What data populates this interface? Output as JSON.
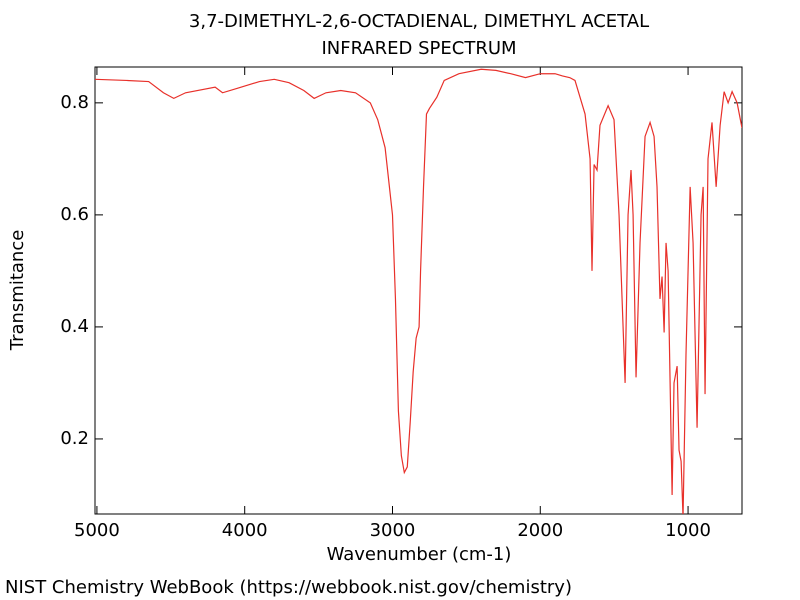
{
  "chart_data": {
    "type": "line",
    "title": "3,7-DIMETHYL-2,6-OCTADIENAL, DIMETHYL ACETAL",
    "subtitle": "INFRARED SPECTRUM",
    "xlabel": "Wavenumber (cm-1)",
    "ylabel": "Transmitance",
    "xlim": [
      5013,
      635
    ],
    "ylim": [
      0.066,
      0.864
    ],
    "xticks": [
      5000,
      4000,
      3000,
      2000,
      1000
    ],
    "yticks": [
      0.2,
      0.4,
      0.6,
      0.8
    ],
    "x": [
      5013,
      4800,
      4650,
      4550,
      4480,
      4400,
      4200,
      4150,
      4050,
      3900,
      3800,
      3700,
      3600,
      3530,
      3450,
      3350,
      3250,
      3150,
      3100,
      3050,
      3000,
      2980,
      2960,
      2940,
      2920,
      2900,
      2880,
      2860,
      2840,
      2820,
      2810,
      2790,
      2770,
      2750,
      2700,
      2650,
      2550,
      2400,
      2300,
      2200,
      2100,
      2000,
      1900,
      1850,
      1800,
      1765,
      1697,
      1663,
      1650,
      1636,
      1616,
      1596,
      1541,
      1501,
      1467,
      1426,
      1406,
      1386,
      1372,
      1352,
      1325,
      1291,
      1257,
      1230,
      1210,
      1190,
      1176,
      1162,
      1149,
      1135,
      1108,
      1095,
      1074,
      1061,
      1047,
      1034,
      1014,
      986,
      966,
      939,
      912,
      898,
      885,
      865,
      838,
      810,
      783,
      756,
      729,
      702,
      668,
      635
    ],
    "series": [
      {
        "color": "#e8302a",
        "values": [
          0.842,
          0.84,
          0.838,
          0.818,
          0.808,
          0.818,
          0.828,
          0.818,
          0.826,
          0.838,
          0.842,
          0.836,
          0.822,
          0.808,
          0.818,
          0.822,
          0.818,
          0.8,
          0.77,
          0.72,
          0.6,
          0.45,
          0.25,
          0.17,
          0.14,
          0.15,
          0.23,
          0.32,
          0.38,
          0.4,
          0.5,
          0.65,
          0.78,
          0.79,
          0.81,
          0.84,
          0.852,
          0.86,
          0.858,
          0.852,
          0.845,
          0.852,
          0.852,
          0.848,
          0.845,
          0.84,
          0.78,
          0.7,
          0.5,
          0.69,
          0.68,
          0.76,
          0.795,
          0.77,
          0.6,
          0.3,
          0.6,
          0.68,
          0.6,
          0.31,
          0.55,
          0.74,
          0.765,
          0.74,
          0.65,
          0.45,
          0.49,
          0.39,
          0.55,
          0.5,
          0.1,
          0.3,
          0.33,
          0.18,
          0.16,
          0.06,
          0.35,
          0.65,
          0.55,
          0.22,
          0.6,
          0.65,
          0.28,
          0.7,
          0.765,
          0.65,
          0.76,
          0.82,
          0.8,
          0.82,
          0.8,
          0.755
        ]
      }
    ]
  },
  "footer": "NIST Chemistry WebBook (https://webbook.nist.gov/chemistry)"
}
